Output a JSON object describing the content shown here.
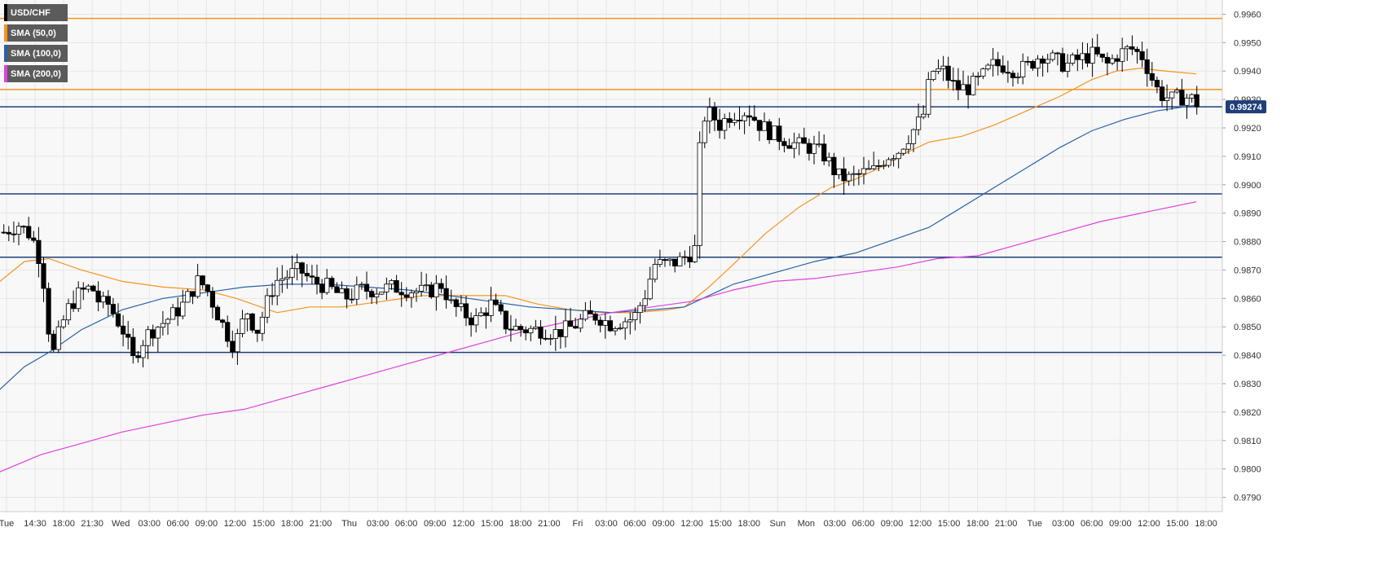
{
  "chart_data": {
    "type": "candlestick",
    "symbol": "USD/CHF",
    "legend": [
      {
        "label": "USD/CHF",
        "color": "#000000"
      },
      {
        "label": "SMA (50,0)",
        "color": "#f7931e"
      },
      {
        "label": "SMA (100,0)",
        "color": "#2962a8"
      },
      {
        "label": "SMA (200,0)",
        "color": "#e040e0"
      }
    ],
    "ylim": [
      0.9785,
      0.9965
    ],
    "y_ticks": [
      "0.9790",
      "0.9800",
      "0.9810",
      "0.9820",
      "0.9830",
      "0.9840",
      "0.9850",
      "0.9860",
      "0.9870",
      "0.9880",
      "0.9890",
      "0.9900",
      "0.9910",
      "0.9920",
      "0.9930",
      "0.9940",
      "0.9950",
      "0.9960"
    ],
    "x_ticks": [
      "Tue",
      "14:30",
      "18:00",
      "21:30",
      "Wed",
      "03:00",
      "06:00",
      "09:00",
      "12:00",
      "15:00",
      "18:00",
      "21:00",
      "Thu",
      "03:00",
      "06:00",
      "09:00",
      "12:00",
      "15:00",
      "18:00",
      "21:00",
      "Fri",
      "03:00",
      "06:00",
      "09:00",
      "12:00",
      "15:00",
      "18:00",
      "Sun",
      "Mon",
      "03:00",
      "06:00",
      "09:00",
      "12:00",
      "15:00",
      "18:00",
      "21:00",
      "Tue",
      "03:00",
      "06:00",
      "09:00",
      "12:00",
      "15:00",
      "18:00"
    ],
    "last_price": "0.99274",
    "horizontal_levels": [
      {
        "value": 0.99585,
        "color": "#f7931e"
      },
      {
        "value": 0.99335,
        "color": "#f7931e"
      },
      {
        "value": 0.99274,
        "color": "#1f3f7a"
      },
      {
        "value": 0.98968,
        "color": "#1f3f7a"
      },
      {
        "value": 0.98745,
        "color": "#1f3f7a"
      },
      {
        "value": 0.9841,
        "color": "#1f3f7a"
      }
    ],
    "price_path": [
      [
        0,
        0.9883
      ],
      [
        20,
        0.9886
      ],
      [
        36,
        0.9882
      ],
      [
        44,
        0.9876
      ],
      [
        52,
        0.9864
      ],
      [
        58,
        0.9846
      ],
      [
        62,
        0.984
      ],
      [
        70,
        0.9848
      ],
      [
        80,
        0.9856
      ],
      [
        95,
        0.9862
      ],
      [
        110,
        0.9864
      ],
      [
        120,
        0.9858
      ],
      [
        130,
        0.9858
      ],
      [
        140,
        0.9853
      ],
      [
        150,
        0.9848
      ],
      [
        160,
        0.9838
      ],
      [
        170,
        0.9844
      ],
      [
        180,
        0.9848
      ],
      [
        200,
        0.9852
      ],
      [
        220,
        0.9857
      ],
      [
        240,
        0.9866
      ],
      [
        250,
        0.9864
      ],
      [
        262,
        0.9856
      ],
      [
        275,
        0.9848
      ],
      [
        285,
        0.9843
      ],
      [
        300,
        0.9856
      ],
      [
        312,
        0.9848
      ],
      [
        322,
        0.9856
      ],
      [
        335,
        0.9866
      ],
      [
        350,
        0.9868
      ],
      [
        365,
        0.987
      ],
      [
        380,
        0.9866
      ],
      [
        400,
        0.9864
      ],
      [
        420,
        0.986
      ],
      [
        440,
        0.9863
      ],
      [
        460,
        0.9863
      ],
      [
        480,
        0.9864
      ],
      [
        500,
        0.9863
      ],
      [
        520,
        0.9862
      ],
      [
        540,
        0.9865
      ],
      [
        550,
        0.9858
      ],
      [
        565,
        0.9855
      ],
      [
        580,
        0.9852
      ],
      [
        600,
        0.9858
      ],
      [
        620,
        0.985
      ],
      [
        640,
        0.9849
      ],
      [
        660,
        0.9849
      ],
      [
        680,
        0.9848
      ],
      [
        700,
        0.985
      ],
      [
        715,
        0.9853
      ],
      [
        730,
        0.9854
      ],
      [
        745,
        0.9851
      ],
      [
        760,
        0.9852
      ],
      [
        775,
        0.9853
      ],
      [
        790,
        0.9862
      ],
      [
        800,
        0.9872
      ],
      [
        815,
        0.9872
      ],
      [
        830,
        0.9873
      ],
      [
        845,
        0.9876
      ],
      [
        852,
        0.9878
      ],
      [
        856,
        0.9912
      ],
      [
        862,
        0.9924
      ],
      [
        870,
        0.9925
      ],
      [
        880,
        0.9921
      ],
      [
        895,
        0.9925
      ],
      [
        915,
        0.9926
      ],
      [
        930,
        0.9921
      ],
      [
        945,
        0.9918
      ],
      [
        960,
        0.9916
      ],
      [
        975,
        0.9914
      ],
      [
        995,
        0.9913
      ],
      [
        1010,
        0.991
      ],
      [
        1025,
        0.9903
      ],
      [
        1040,
        0.9902
      ],
      [
        1055,
        0.9904
      ],
      [
        1070,
        0.9905
      ],
      [
        1085,
        0.991
      ],
      [
        1100,
        0.9912
      ],
      [
        1115,
        0.9918
      ],
      [
        1130,
        0.9924
      ],
      [
        1140,
        0.994
      ],
      [
        1155,
        0.994
      ],
      [
        1170,
        0.9934
      ],
      [
        1185,
        0.9934
      ],
      [
        1200,
        0.9937
      ],
      [
        1215,
        0.9942
      ],
      [
        1230,
        0.9942
      ],
      [
        1245,
        0.994
      ],
      [
        1260,
        0.9942
      ],
      [
        1275,
        0.9946
      ],
      [
        1290,
        0.9944
      ],
      [
        1305,
        0.9942
      ],
      [
        1320,
        0.9944
      ],
      [
        1340,
        0.9946
      ],
      [
        1355,
        0.9942
      ],
      [
        1370,
        0.9946
      ],
      [
        1385,
        0.9948
      ],
      [
        1400,
        0.9945
      ],
      [
        1410,
        0.9938
      ],
      [
        1420,
        0.9932
      ],
      [
        1435,
        0.993
      ],
      [
        1450,
        0.9931
      ],
      [
        1462,
        0.993
      ],
      [
        1470,
        0.99274
      ]
    ],
    "sma_50": [
      [
        0,
        0.9866
      ],
      [
        30,
        0.9873
      ],
      [
        60,
        0.9874
      ],
      [
        100,
        0.987
      ],
      [
        150,
        0.9866
      ],
      [
        200,
        0.9864
      ],
      [
        250,
        0.9863
      ],
      [
        290,
        0.986
      ],
      [
        320,
        0.9857
      ],
      [
        340,
        0.9855
      ],
      [
        380,
        0.9857
      ],
      [
        420,
        0.9857
      ],
      [
        470,
        0.9859
      ],
      [
        520,
        0.9861
      ],
      [
        580,
        0.9861
      ],
      [
        620,
        0.9861
      ],
      [
        660,
        0.9858
      ],
      [
        700,
        0.9856
      ],
      [
        740,
        0.9855
      ],
      [
        780,
        0.9855
      ],
      [
        820,
        0.9856
      ],
      [
        840,
        0.9857
      ],
      [
        870,
        0.9864
      ],
      [
        900,
        0.9872
      ],
      [
        940,
        0.9883
      ],
      [
        980,
        0.9892
      ],
      [
        1020,
        0.9899
      ],
      [
        1050,
        0.9902
      ],
      [
        1080,
        0.9906
      ],
      [
        1110,
        0.9911
      ],
      [
        1140,
        0.9915
      ],
      [
        1180,
        0.9917
      ],
      [
        1220,
        0.9921
      ],
      [
        1260,
        0.9926
      ],
      [
        1300,
        0.9931
      ],
      [
        1340,
        0.9937
      ],
      [
        1370,
        0.994
      ],
      [
        1400,
        0.9941
      ],
      [
        1430,
        0.994
      ],
      [
        1468,
        0.9939
      ]
    ],
    "sma_100": [
      [
        0,
        0.9828
      ],
      [
        30,
        0.9836
      ],
      [
        60,
        0.9841
      ],
      [
        100,
        0.9849
      ],
      [
        150,
        0.9856
      ],
      [
        200,
        0.986
      ],
      [
        250,
        0.9862
      ],
      [
        300,
        0.9864
      ],
      [
        350,
        0.9865
      ],
      [
        400,
        0.9865
      ],
      [
        450,
        0.9864
      ],
      [
        500,
        0.9863
      ],
      [
        550,
        0.9861
      ],
      [
        600,
        0.9859
      ],
      [
        650,
        0.9857
      ],
      [
        700,
        0.9856
      ],
      [
        750,
        0.9855
      ],
      [
        800,
        0.9856
      ],
      [
        840,
        0.9857
      ],
      [
        870,
        0.9861
      ],
      [
        900,
        0.9865
      ],
      [
        950,
        0.9869
      ],
      [
        1000,
        0.9873
      ],
      [
        1050,
        0.9876
      ],
      [
        1100,
        0.9881
      ],
      [
        1140,
        0.9885
      ],
      [
        1180,
        0.9892
      ],
      [
        1220,
        0.9899
      ],
      [
        1260,
        0.9906
      ],
      [
        1300,
        0.9913
      ],
      [
        1340,
        0.9919
      ],
      [
        1380,
        0.9923
      ],
      [
        1420,
        0.9926
      ],
      [
        1468,
        0.9928
      ]
    ],
    "sma_200": [
      [
        0,
        0.9799
      ],
      [
        50,
        0.9805
      ],
      [
        100,
        0.9809
      ],
      [
        150,
        0.9813
      ],
      [
        200,
        0.9816
      ],
      [
        250,
        0.9819
      ],
      [
        300,
        0.9821
      ],
      [
        350,
        0.9825
      ],
      [
        400,
        0.9829
      ],
      [
        450,
        0.9833
      ],
      [
        500,
        0.9837
      ],
      [
        550,
        0.9841
      ],
      [
        600,
        0.9845
      ],
      [
        650,
        0.9849
      ],
      [
        700,
        0.9852
      ],
      [
        750,
        0.9855
      ],
      [
        800,
        0.9857
      ],
      [
        850,
        0.9859
      ],
      [
        900,
        0.9863
      ],
      [
        950,
        0.9866
      ],
      [
        1000,
        0.9867
      ],
      [
        1050,
        0.9869
      ],
      [
        1100,
        0.9871
      ],
      [
        1150,
        0.9874
      ],
      [
        1200,
        0.9875
      ],
      [
        1250,
        0.9879
      ],
      [
        1300,
        0.9883
      ],
      [
        1350,
        0.9887
      ],
      [
        1400,
        0.989
      ],
      [
        1468,
        0.9894
      ]
    ]
  }
}
